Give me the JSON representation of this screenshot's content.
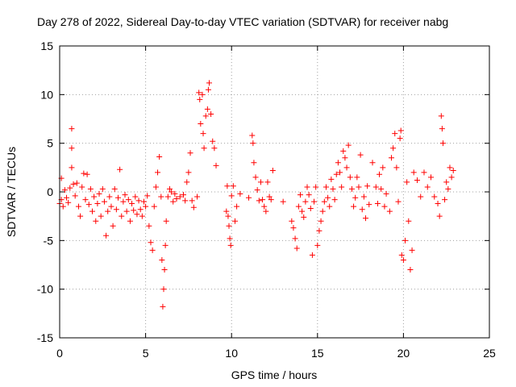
{
  "chart_data": {
    "type": "scatter",
    "title": "Day 278 of 2022, Sidereal Day-to-day VTEC variation (SDTVAR) for receiver nabg",
    "xlabel": "GPS time / hours",
    "ylabel": "SDTVAR / TECUs",
    "xlim": [
      0,
      25
    ],
    "ylim": [
      -15,
      15
    ],
    "xticks": [
      "0",
      "5",
      "10",
      "15",
      "20",
      "25"
    ],
    "yticks": [
      "-15",
      "-10",
      "-5",
      "0",
      "5",
      "10",
      "15"
    ],
    "grid": true,
    "marker": "plus",
    "color": "#ff0000",
    "series": [
      {
        "name": "SDTVAR",
        "points": [
          [
            0.0,
            -1.2
          ],
          [
            0.1,
            -0.8
          ],
          [
            0.1,
            1.4
          ],
          [
            0.2,
            -1.5
          ],
          [
            0.3,
            0.2
          ],
          [
            0.4,
            -0.6
          ],
          [
            0.5,
            -1.1
          ],
          [
            0.6,
            0.4
          ],
          [
            0.7,
            6.5
          ],
          [
            0.7,
            4.5
          ],
          [
            0.7,
            2.5
          ],
          [
            0.8,
            0.8
          ],
          [
            0.9,
            -0.4
          ],
          [
            1.0,
            0.9
          ],
          [
            1.1,
            -1.5
          ],
          [
            1.2,
            -2.5
          ],
          [
            1.3,
            0.5
          ],
          [
            1.4,
            1.9
          ],
          [
            1.5,
            -0.8
          ],
          [
            1.6,
            1.8
          ],
          [
            1.7,
            -1.3
          ],
          [
            1.8,
            0.3
          ],
          [
            1.9,
            -2.0
          ],
          [
            2.0,
            -0.5
          ],
          [
            2.1,
            -3.0
          ],
          [
            2.2,
            -1.2
          ],
          [
            2.3,
            -0.2
          ],
          [
            2.4,
            -2.5
          ],
          [
            2.5,
            0.3
          ],
          [
            2.6,
            -1.0
          ],
          [
            2.7,
            -4.5
          ],
          [
            2.8,
            -2.0
          ],
          [
            2.9,
            -0.5
          ],
          [
            3.0,
            -1.5
          ],
          [
            3.1,
            -3.5
          ],
          [
            3.2,
            0.3
          ],
          [
            3.3,
            -1.8
          ],
          [
            3.4,
            -0.6
          ],
          [
            3.5,
            2.3
          ],
          [
            3.6,
            -2.5
          ],
          [
            3.7,
            -1.0
          ],
          [
            3.8,
            -0.3
          ],
          [
            3.9,
            -2.0
          ],
          [
            4.0,
            -0.8
          ],
          [
            4.1,
            -3.0
          ],
          [
            4.2,
            -1.2
          ],
          [
            4.3,
            -1.9
          ],
          [
            4.4,
            -0.5
          ],
          [
            4.5,
            -2.3
          ],
          [
            4.6,
            -0.9
          ],
          [
            4.7,
            -1.8
          ],
          [
            4.8,
            -2.5
          ],
          [
            4.9,
            -1.0
          ],
          [
            5.0,
            -1.5
          ],
          [
            5.1,
            -0.4
          ],
          [
            5.2,
            -3.5
          ],
          [
            5.3,
            -5.2
          ],
          [
            5.4,
            -6.0
          ],
          [
            5.5,
            -1.5
          ],
          [
            5.6,
            0.5
          ],
          [
            5.7,
            2.0
          ],
          [
            5.8,
            3.6
          ],
          [
            5.9,
            -0.5
          ],
          [
            5.95,
            -7.0
          ],
          [
            6.0,
            -11.8
          ],
          [
            6.05,
            -10.0
          ],
          [
            6.1,
            -8.0
          ],
          [
            6.15,
            -5.5
          ],
          [
            6.2,
            -3.0
          ],
          [
            6.3,
            -0.5
          ],
          [
            6.4,
            0.3
          ],
          [
            6.5,
            0.0
          ],
          [
            6.6,
            -1.0
          ],
          [
            6.7,
            -0.2
          ],
          [
            6.8,
            -0.7
          ],
          [
            7.0,
            -0.5
          ],
          [
            7.2,
            -0.3
          ],
          [
            7.3,
            -0.9
          ],
          [
            7.4,
            1.0
          ],
          [
            7.5,
            2.0
          ],
          [
            7.6,
            4.0
          ],
          [
            7.7,
            -0.9
          ],
          [
            7.8,
            -1.6
          ],
          [
            8.0,
            -0.5
          ],
          [
            8.1,
            10.2
          ],
          [
            8.15,
            9.5
          ],
          [
            8.2,
            7.0
          ],
          [
            8.3,
            10.0
          ],
          [
            8.35,
            6.0
          ],
          [
            8.4,
            4.5
          ],
          [
            8.5,
            7.8
          ],
          [
            8.6,
            8.5
          ],
          [
            8.65,
            10.5
          ],
          [
            8.7,
            11.2
          ],
          [
            8.8,
            8.0
          ],
          [
            8.9,
            5.2
          ],
          [
            9.0,
            4.5
          ],
          [
            9.1,
            2.7
          ],
          [
            9.7,
            -2.0
          ],
          [
            9.75,
            0.6
          ],
          [
            9.8,
            -2.5
          ],
          [
            9.85,
            -3.5
          ],
          [
            9.9,
            -4.8
          ],
          [
            9.95,
            -5.5
          ],
          [
            10.0,
            -0.4
          ],
          [
            10.1,
            0.6
          ],
          [
            10.2,
            -3.0
          ],
          [
            10.3,
            -1.5
          ],
          [
            10.5,
            -0.2
          ],
          [
            11.0,
            -0.6
          ],
          [
            11.2,
            5.8
          ],
          [
            11.25,
            5.0
          ],
          [
            11.3,
            3.0
          ],
          [
            11.4,
            1.5
          ],
          [
            11.5,
            0.2
          ],
          [
            11.6,
            -0.9
          ],
          [
            11.7,
            1.0
          ],
          [
            11.8,
            -0.8
          ],
          [
            11.9,
            -1.5
          ],
          [
            12.0,
            -2.0
          ],
          [
            12.1,
            1.0
          ],
          [
            12.2,
            -0.5
          ],
          [
            12.3,
            -0.8
          ],
          [
            12.4,
            2.2
          ],
          [
            13.0,
            -1.0
          ],
          [
            13.5,
            -3.0
          ],
          [
            13.6,
            -3.7
          ],
          [
            13.7,
            -4.8
          ],
          [
            13.8,
            -5.8
          ],
          [
            13.9,
            -1.5
          ],
          [
            14.0,
            -0.3
          ],
          [
            14.1,
            -2.0
          ],
          [
            14.2,
            -2.6
          ],
          [
            14.3,
            -1.0
          ],
          [
            14.4,
            0.5
          ],
          [
            14.5,
            -0.3
          ],
          [
            14.6,
            -1.7
          ],
          [
            14.7,
            -6.5
          ],
          [
            14.8,
            -1.0
          ],
          [
            14.9,
            0.5
          ],
          [
            15.0,
            -5.5
          ],
          [
            15.1,
            -4.0
          ],
          [
            15.2,
            -3.0
          ],
          [
            15.3,
            -2.0
          ],
          [
            15.4,
            -1.0
          ],
          [
            15.5,
            0.5
          ],
          [
            15.6,
            -0.6
          ],
          [
            15.7,
            -1.5
          ],
          [
            15.8,
            1.3
          ],
          [
            15.9,
            0.3
          ],
          [
            16.0,
            -0.8
          ],
          [
            16.1,
            1.8
          ],
          [
            16.2,
            3.0
          ],
          [
            16.3,
            2.0
          ],
          [
            16.4,
            0.5
          ],
          [
            16.5,
            4.2
          ],
          [
            16.6,
            3.5
          ],
          [
            16.7,
            2.5
          ],
          [
            16.8,
            4.8
          ],
          [
            16.9,
            1.5
          ],
          [
            17.0,
            0.3
          ],
          [
            17.1,
            -1.5
          ],
          [
            17.2,
            -0.6
          ],
          [
            17.3,
            1.5
          ],
          [
            17.4,
            0.5
          ],
          [
            17.5,
            3.8
          ],
          [
            17.6,
            -1.8
          ],
          [
            17.7,
            -0.5
          ],
          [
            17.8,
            -2.7
          ],
          [
            17.9,
            0.6
          ],
          [
            18.0,
            -1.3
          ],
          [
            18.2,
            3.0
          ],
          [
            18.4,
            0.5
          ],
          [
            18.5,
            -1.2
          ],
          [
            18.6,
            1.8
          ],
          [
            18.7,
            0.3
          ],
          [
            18.8,
            2.5
          ],
          [
            18.9,
            -1.5
          ],
          [
            19.0,
            -0.2
          ],
          [
            19.2,
            -2.0
          ],
          [
            19.3,
            3.5
          ],
          [
            19.4,
            4.5
          ],
          [
            19.5,
            6.0
          ],
          [
            19.6,
            2.5
          ],
          [
            19.7,
            -1.0
          ],
          [
            19.8,
            5.5
          ],
          [
            19.85,
            6.3
          ],
          [
            19.9,
            -6.5
          ],
          [
            20.0,
            -7.0
          ],
          [
            20.1,
            -5.0
          ],
          [
            20.2,
            1.0
          ],
          [
            20.3,
            -3.0
          ],
          [
            20.4,
            -8.0
          ],
          [
            20.5,
            -6.0
          ],
          [
            20.6,
            2.0
          ],
          [
            20.8,
            1.2
          ],
          [
            21.0,
            -0.5
          ],
          [
            21.2,
            2.0
          ],
          [
            21.4,
            0.5
          ],
          [
            21.6,
            1.5
          ],
          [
            21.8,
            -0.5
          ],
          [
            22.0,
            -1.2
          ],
          [
            22.1,
            -2.5
          ],
          [
            22.2,
            7.8
          ],
          [
            22.25,
            6.5
          ],
          [
            22.3,
            5.0
          ],
          [
            22.4,
            -0.8
          ],
          [
            22.5,
            1.0
          ],
          [
            22.6,
            0.3
          ],
          [
            22.7,
            2.5
          ],
          [
            22.8,
            1.5
          ],
          [
            22.9,
            2.2
          ]
        ]
      }
    ]
  }
}
